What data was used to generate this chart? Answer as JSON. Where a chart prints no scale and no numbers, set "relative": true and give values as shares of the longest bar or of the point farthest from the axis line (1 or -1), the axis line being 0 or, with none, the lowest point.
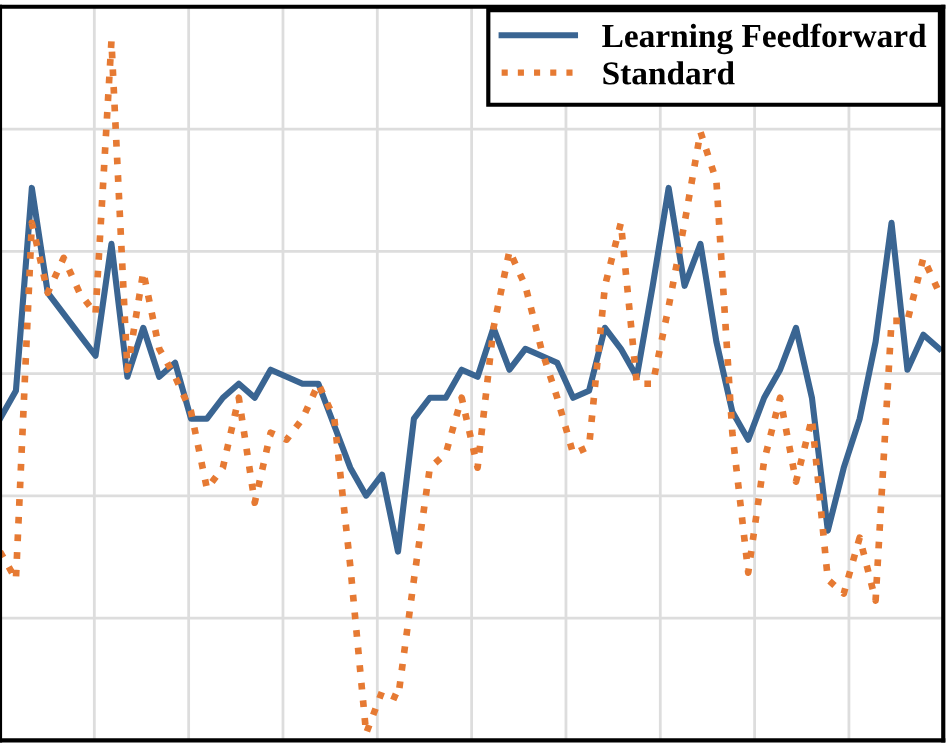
{
  "chart_data": {
    "type": "line",
    "relative": true,
    "grid": true,
    "legend": "top right",
    "categories": [
      null,
      null,
      null,
      null,
      null,
      null,
      null,
      null,
      null,
      null,
      null,
      null,
      null,
      null,
      null,
      null,
      null,
      null,
      null,
      null,
      null,
      null,
      null,
      null,
      null,
      null,
      null,
      null,
      null,
      null,
      null,
      null,
      null,
      null,
      null,
      null,
      null,
      null,
      null,
      null,
      null,
      null,
      null,
      null,
      null,
      null,
      null,
      null,
      null,
      null,
      null,
      null,
      null,
      null,
      null,
      null,
      null,
      null,
      null,
      null
    ],
    "series": [
      {
        "name": "Learning Feedforward",
        "color": "#3a6592",
        "line_style": "solid",
        "values": [
          0.46,
          0.5,
          0.79,
          0.64,
          0.61,
          0.58,
          0.55,
          0.71,
          0.52,
          0.59,
          0.52,
          0.54,
          0.46,
          0.46,
          0.49,
          0.51,
          0.49,
          0.53,
          0.52,
          0.51,
          0.51,
          0.45,
          0.39,
          0.35,
          0.38,
          0.27,
          0.46,
          0.49,
          0.49,
          0.53,
          0.52,
          0.59,
          0.53,
          0.56,
          0.55,
          0.54,
          0.49,
          0.5,
          0.59,
          0.56,
          0.52,
          0.65,
          0.79,
          0.65,
          0.71,
          0.57,
          0.47,
          0.43,
          0.49,
          0.53,
          0.59,
          0.49,
          0.3,
          0.39,
          0.46,
          0.57,
          0.74,
          0.53,
          0.58,
          0.56
        ]
      },
      {
        "name": "Standard",
        "color": "#e67a33",
        "line_style": "dotted",
        "values": [
          0.27,
          0.23,
          0.74,
          0.64,
          0.69,
          0.64,
          0.61,
          1.0,
          0.53,
          0.67,
          0.56,
          0.52,
          0.47,
          0.36,
          0.39,
          0.49,
          0.34,
          0.44,
          0.43,
          0.46,
          0.51,
          0.46,
          0.25,
          0.01,
          0.07,
          0.06,
          0.23,
          0.39,
          0.41,
          0.49,
          0.39,
          0.59,
          0.7,
          0.65,
          0.56,
          0.49,
          0.41,
          0.42,
          0.65,
          0.74,
          0.51,
          0.51,
          0.62,
          0.74,
          0.87,
          0.8,
          0.44,
          0.24,
          0.4,
          0.49,
          0.37,
          0.46,
          0.23,
          0.21,
          0.29,
          0.2,
          0.6,
          0.6,
          0.69,
          0.64
        ]
      }
    ]
  }
}
